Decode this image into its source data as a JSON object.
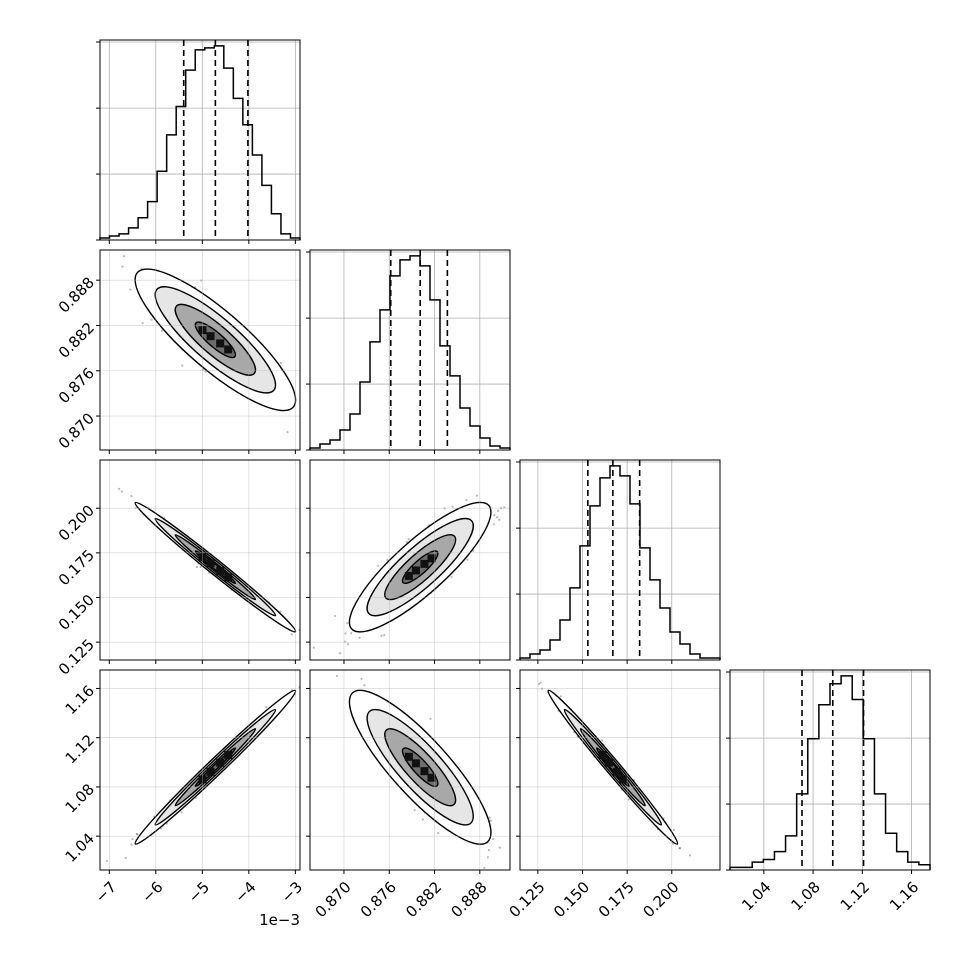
{
  "chart_data": {
    "type": "corner",
    "parameters": [
      {
        "label": "",
        "range": [
          -7.2,
          -2.9
        ],
        "ticks": [
          -7,
          -6,
          -5,
          -4,
          -3
        ],
        "tick_labels": [
          "−7",
          "−6",
          "−5",
          "−4",
          "−3"
        ],
        "offset_text": "1e−3",
        "quantiles": [
          -5.4,
          -4.72,
          -4.02
        ],
        "hist": [
          1,
          2,
          3,
          6,
          11,
          19,
          34,
          52,
          66,
          84,
          94,
          95,
          96,
          85,
          70,
          57,
          42,
          27,
          13,
          3,
          1
        ]
      },
      {
        "label": "",
        "range": [
          0.8655,
          0.892
        ],
        "ticks": [
          0.87,
          0.876,
          0.882,
          0.888
        ],
        "tick_labels": [
          "0.870",
          "0.876",
          "0.882",
          "0.888"
        ],
        "quantiles": [
          0.8762,
          0.8801,
          0.8837
        ],
        "hist": [
          1,
          3,
          5,
          10,
          18,
          34,
          54,
          70,
          87,
          95,
          97,
          92,
          75,
          52,
          37,
          21,
          12,
          6,
          2,
          1
        ]
      },
      {
        "label": "",
        "range": [
          0.115,
          0.227
        ],
        "ticks": [
          0.125,
          0.15,
          0.175,
          0.2
        ],
        "tick_labels": [
          "0.125",
          "0.150",
          "0.175",
          "0.200"
        ],
        "quantiles": [
          0.153,
          0.167,
          0.182
        ],
        "hist": [
          1,
          3,
          5,
          10,
          20,
          36,
          57,
          77,
          91,
          97,
          92,
          78,
          56,
          40,
          26,
          14,
          8,
          3,
          1,
          1
        ]
      },
      {
        "label": "",
        "range": [
          1.0125,
          1.175
        ],
        "ticks": [
          1.04,
          1.08,
          1.12,
          1.16
        ],
        "tick_labels": [
          "1.04",
          "1.08",
          "1.12",
          "1.16"
        ],
        "quantiles": [
          1.071,
          1.096,
          1.121
        ],
        "hist": [
          1,
          1,
          3,
          4,
          7,
          13,
          29,
          50,
          63,
          71,
          74,
          65,
          50,
          29,
          14,
          7,
          3,
          2
        ]
      }
    ],
    "correlations": [
      [
        1,
        -0.85,
        -0.99,
        0.99
      ],
      [
        -0.85,
        1,
        0.85,
        -0.85
      ],
      [
        -0.99,
        0.85,
        1,
        -0.99
      ],
      [
        0.99,
        -0.85,
        -0.99,
        1
      ]
    ],
    "contour_levels_sigma": [
      0.5,
      1.0,
      1.5,
      2.0
    ],
    "grid": true,
    "colors": {
      "line": "#000000",
      "grid": "#b0b0b0",
      "points": "#000000"
    }
  }
}
